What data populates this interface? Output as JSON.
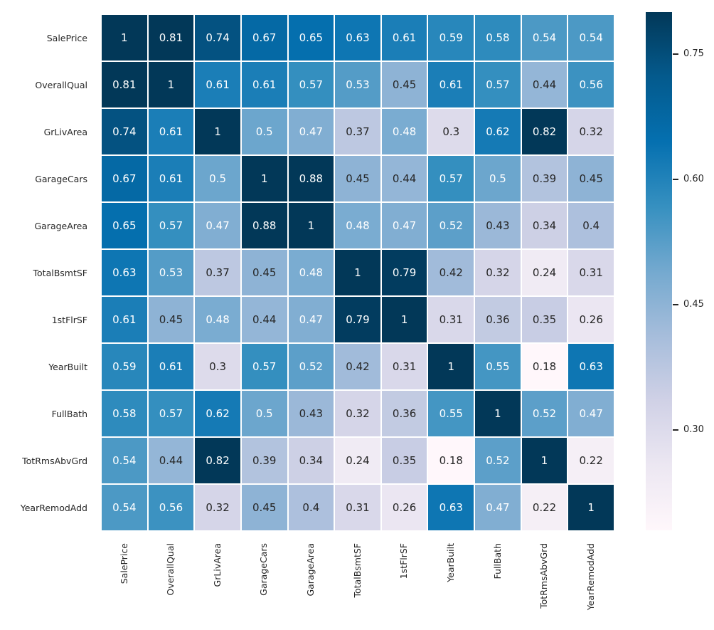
{
  "chart_data": {
    "type": "heatmap",
    "title": "",
    "xlabel": "",
    "ylabel": "",
    "categories": [
      "SalePrice",
      "OverallQual",
      "GrLivArea",
      "GarageCars",
      "GarageArea",
      "TotalBsmtSF",
      "1stFlrSF",
      "YearBuilt",
      "FullBath",
      "TotRmsAbvGrd",
      "YearRemodAdd"
    ],
    "matrix": [
      [
        1,
        0.81,
        0.74,
        0.67,
        0.65,
        0.63,
        0.61,
        0.59,
        0.58,
        0.54,
        0.54
      ],
      [
        0.81,
        1,
        0.61,
        0.61,
        0.57,
        0.53,
        0.45,
        0.61,
        0.57,
        0.44,
        0.56
      ],
      [
        0.74,
        0.61,
        1,
        0.5,
        0.47,
        0.37,
        0.48,
        0.3,
        0.62,
        0.82,
        0.32
      ],
      [
        0.67,
        0.61,
        0.5,
        1,
        0.88,
        0.45,
        0.44,
        0.57,
        0.5,
        0.39,
        0.45
      ],
      [
        0.65,
        0.57,
        0.47,
        0.88,
        1,
        0.48,
        0.47,
        0.52,
        0.43,
        0.34,
        0.4
      ],
      [
        0.63,
        0.53,
        0.37,
        0.45,
        0.48,
        1,
        0.79,
        0.42,
        0.32,
        0.24,
        0.31
      ],
      [
        0.61,
        0.45,
        0.48,
        0.44,
        0.47,
        0.79,
        1,
        0.31,
        0.36,
        0.35,
        0.26
      ],
      [
        0.59,
        0.61,
        0.3,
        0.57,
        0.52,
        0.42,
        0.31,
        1,
        0.55,
        0.18,
        0.63
      ],
      [
        0.58,
        0.57,
        0.62,
        0.5,
        0.43,
        0.32,
        0.36,
        0.55,
        1,
        0.52,
        0.47
      ],
      [
        0.54,
        0.44,
        0.82,
        0.39,
        0.34,
        0.24,
        0.35,
        0.18,
        0.52,
        1,
        0.22
      ],
      [
        0.54,
        0.56,
        0.32,
        0.45,
        0.4,
        0.31,
        0.26,
        0.63,
        0.47,
        0.22,
        1
      ]
    ],
    "annotated": true,
    "grid_line_color": "#ffffff",
    "background_color": "#ffffff",
    "colormap": {
      "name": "PuBu",
      "vmin": 0.18,
      "vmax": 0.8,
      "stops": [
        "#fff7fb",
        "#ece7f2",
        "#d0d1e6",
        "#a6bddb",
        "#74a9cf",
        "#3690c0",
        "#0570b0",
        "#045a8d",
        "#023858"
      ]
    },
    "annotation_colors": {
      "on_light": "#262626",
      "on_dark": "#ffffff",
      "luminance_threshold": 0.408
    },
    "colorbar": {
      "position": "right",
      "tick_labels": [
        "0.75",
        "0.60",
        "0.45",
        "0.30"
      ],
      "tick_values": [
        0.75,
        0.6,
        0.45,
        0.3
      ]
    },
    "axis_label_color": "#262626",
    "legend": "none"
  }
}
